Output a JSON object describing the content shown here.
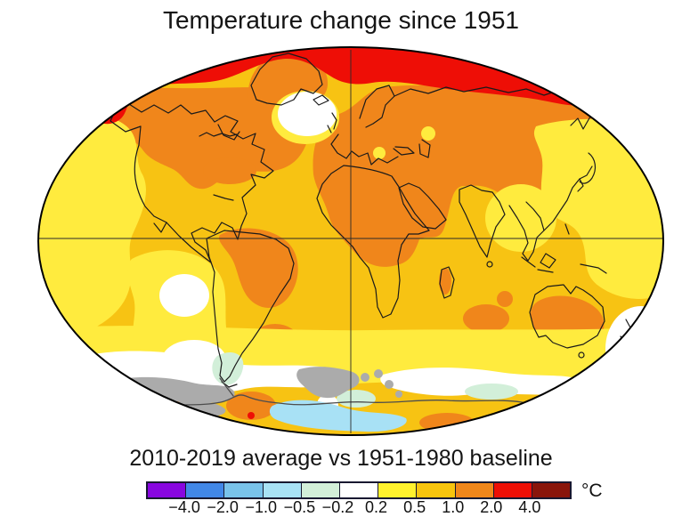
{
  "title": "Temperature change since 1951",
  "subtitle": "2010-2019 average vs 1951-1980 baseline",
  "legend": {
    "unit_label": "°C",
    "ticks": [
      "−4.0",
      "−2.0",
      "−1.0",
      "−0.5",
      "−0.2",
      "0.2",
      "0.5",
      "1.0",
      "2.0",
      "4.0"
    ],
    "cells": [
      {
        "color": "#8806E0",
        "range": "< −4.0"
      },
      {
        "color": "#4287E8",
        "range": "−4.0 to −2.0"
      },
      {
        "color": "#79C2EB",
        "range": "−2.0 to −1.0"
      },
      {
        "color": "#A8E1F5",
        "range": "−1.0 to −0.5"
      },
      {
        "color": "#D2EFD9",
        "range": "−0.5 to −0.2"
      },
      {
        "color": "#FFFFFF",
        "range": "−0.2 to 0.2"
      },
      {
        "color": "#FFF12E",
        "range": "0.2 to 0.5"
      },
      {
        "color": "#F8C40E",
        "range": "0.5 to 1.0"
      },
      {
        "color": "#F0861B",
        "range": "1.0 to 2.0"
      },
      {
        "color": "#EE0E06",
        "range": "2.0 to 4.0"
      },
      {
        "color": "#8A150B",
        "range": "> 4.0"
      }
    ]
  },
  "map": {
    "projection": "robinson-style world map",
    "palette": {
      "ocean_gold": "#F7C313",
      "warm_yellow": "#FFEB3E",
      "warm_orange": "#F0861B",
      "hot_red": "#EE0E06",
      "neutral_white": "#FFFFFF",
      "cool_palegreen": "#D2EFD9",
      "cool_lightblue": "#A8E1F5",
      "no_data_gray": "#ABABAB",
      "coastline": "#1A1A1A"
    }
  },
  "chart_data": {
    "type": "heatmap",
    "title": "Temperature change since 1951",
    "subtitle": "2010-2019 average vs 1951-1980 baseline",
    "unit": "°C",
    "scale_ticks": [
      -4.0,
      -2.0,
      -1.0,
      -0.5,
      -0.2,
      0.2,
      0.5,
      1.0,
      2.0,
      4.0
    ],
    "scale_colors": [
      "#8806E0",
      "#4287E8",
      "#79C2EB",
      "#A8E1F5",
      "#D2EFD9",
      "#FFFFFF",
      "#FFF12E",
      "#F8C40E",
      "#F0861B",
      "#EE0E06",
      "#8A150B"
    ],
    "legend_position": "bottom",
    "regions": [
      {
        "region": "Arctic band",
        "anomaly_c": "2.0 to 4.0"
      },
      {
        "region": "Northern continents (N. America, Europe, Siberia, Middle East, N. Africa)",
        "anomaly_c": "1.0 to 2.0"
      },
      {
        "region": "Most oceans",
        "anomaly_c": "0.5 to 1.0"
      },
      {
        "region": "Eastern Pacific / Southern Ocean patches",
        "anomaly_c": "−0.2 to 0.5"
      },
      {
        "region": "North Atlantic warming hole",
        "anomaly_c": "−0.2 to 0.2"
      },
      {
        "region": "Near Antarctica coastal patches",
        "anomaly_c": "−1.0 to −0.2"
      },
      {
        "region": "Antarctic sectors",
        "anomaly_c": "no data (gray)"
      }
    ]
  }
}
